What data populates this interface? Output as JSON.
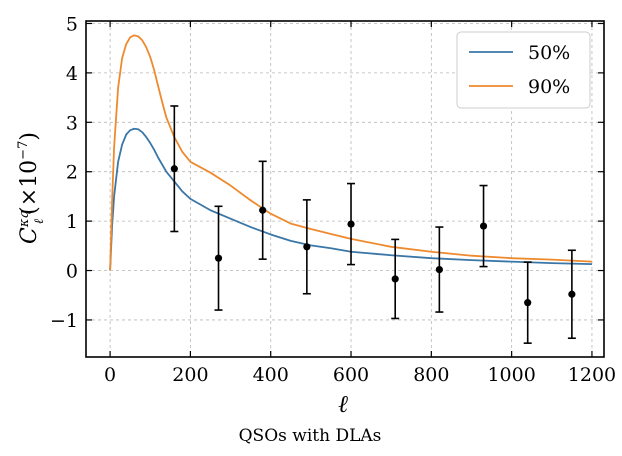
{
  "chart_data": {
    "type": "line",
    "caption": "QSOs with DLAs",
    "xlabel": "ℓ",
    "ylabel_main": "C",
    "ylabel_sub": "ℓ",
    "ylabel_sup": "κq",
    "ylabel_scale": "(×10",
    "ylabel_exp": "−7",
    "ylabel_close": ")",
    "xlim": [
      -60,
      1230
    ],
    "ylim": [
      -1.75,
      5.05
    ],
    "x_ticks": [
      0,
      200,
      400,
      600,
      800,
      1000,
      1200
    ],
    "x_tick_labels": [
      "0",
      "200",
      "400",
      "600",
      "800",
      "1000",
      "1200"
    ],
    "y_ticks": [
      -1,
      0,
      1,
      2,
      3,
      4,
      5
    ],
    "y_tick_labels": [
      "−1",
      "0",
      "1",
      "2",
      "3",
      "4",
      "5"
    ],
    "grid": true,
    "legend_position": "top-right",
    "series": [
      {
        "name": "50%",
        "color": "#3a76a6",
        "x": [
          0,
          5,
          10,
          20,
          30,
          40,
          50,
          60,
          70,
          80,
          90,
          100,
          110,
          120,
          140,
          160,
          180,
          200,
          250,
          300,
          350,
          400,
          450,
          500,
          550,
          600,
          700,
          800,
          900,
          1000,
          1100,
          1200
        ],
        "y": [
          0,
          0.9,
          1.5,
          2.2,
          2.55,
          2.75,
          2.84,
          2.87,
          2.86,
          2.8,
          2.7,
          2.58,
          2.44,
          2.28,
          2.0,
          1.8,
          1.6,
          1.45,
          1.22,
          1.05,
          0.88,
          0.73,
          0.6,
          0.51,
          0.45,
          0.38,
          0.31,
          0.25,
          0.21,
          0.18,
          0.15,
          0.13
        ]
      },
      {
        "name": "90%",
        "color": "#ee8a2e",
        "x": [
          0,
          5,
          10,
          20,
          30,
          40,
          50,
          60,
          70,
          80,
          90,
          100,
          110,
          120,
          130,
          140,
          160,
          180,
          200,
          250,
          300,
          350,
          400,
          450,
          500,
          550,
          600,
          700,
          800,
          900,
          1000,
          1100,
          1200
        ],
        "y": [
          0,
          1.4,
          2.5,
          3.7,
          4.3,
          4.58,
          4.72,
          4.76,
          4.74,
          4.66,
          4.52,
          4.32,
          4.05,
          3.72,
          3.4,
          3.1,
          2.7,
          2.4,
          2.2,
          1.98,
          1.72,
          1.42,
          1.15,
          0.95,
          0.84,
          0.74,
          0.64,
          0.48,
          0.38,
          0.3,
          0.25,
          0.22,
          0.18
        ]
      }
    ],
    "data_points": {
      "name": "QSOs with DLAs",
      "color": "#000000",
      "x": [
        160,
        270,
        380,
        490,
        600,
        710,
        820,
        930,
        1040,
        1150
      ],
      "y": [
        2.06,
        0.25,
        1.22,
        0.48,
        0.94,
        -0.17,
        0.02,
        0.9,
        -0.65,
        -0.48
      ],
      "yerr": [
        1.27,
        1.05,
        0.99,
        0.95,
        0.82,
        0.8,
        0.86,
        0.82,
        0.82,
        0.89
      ]
    }
  }
}
